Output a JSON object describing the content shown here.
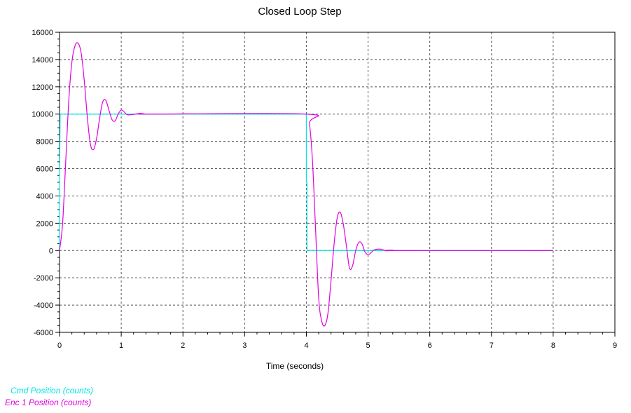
{
  "chart_data": {
    "type": "line",
    "title": "Closed Loop Step",
    "xlabel": "Time (seconds)",
    "ylabel": "",
    "xlim": [
      0,
      9
    ],
    "ylim": [
      -6000,
      16000
    ],
    "xticks": [
      "0",
      "1",
      "2",
      "3",
      "4",
      "5",
      "6",
      "7",
      "8",
      "9"
    ],
    "yticks": [
      "16000",
      "14000",
      "12000",
      "10000",
      "8000",
      "6000",
      "4000",
      "2000",
      "0",
      "-2000",
      "-4000",
      "-6000"
    ],
    "grid": true,
    "legend_position": "bottom-left",
    "series": [
      {
        "name": "Cmd Position (counts)",
        "color": "#00e5e5",
        "x": [
          0,
          0,
          0.01,
          4.0,
          4.0,
          4.01,
          4.01,
          8.0
        ],
        "y": [
          0,
          5000,
          10000,
          10000,
          5000,
          5000,
          0,
          0
        ]
      },
      {
        "name": "Enc 1 Position (counts)",
        "color": "#e000e0",
        "x": [
          0,
          0.05,
          0.1,
          0.15,
          0.2,
          0.25,
          0.3,
          0.35,
          0.4,
          0.45,
          0.5,
          0.55,
          0.6,
          0.65,
          0.7,
          0.75,
          0.8,
          0.85,
          0.9,
          0.95,
          1.0,
          1.05,
          1.1,
          1.2,
          1.3,
          1.4,
          1.5,
          4.0,
          4.05,
          4.1,
          4.15,
          4.2,
          4.25,
          4.3,
          4.35,
          4.4,
          4.45,
          4.5,
          4.55,
          4.6,
          4.65,
          4.7,
          4.75,
          4.8,
          4.85,
          4.9,
          4.95,
          5.0,
          5.05,
          5.1,
          5.2,
          5.3,
          5.4,
          5.5,
          8.0
        ],
        "y": [
          0,
          2000,
          6500,
          11000,
          13800,
          15000,
          15200,
          14500,
          12500,
          9800,
          7800,
          7400,
          8200,
          9700,
          10900,
          11000,
          10300,
          9600,
          9500,
          10000,
          10300,
          10150,
          9950,
          9980,
          10050,
          10000,
          10000,
          10000,
          9300,
          6500,
          1500,
          -3500,
          -5200,
          -5500,
          -4600,
          -2200,
          500,
          2400,
          2800,
          1900,
          300,
          -1300,
          -1100,
          0,
          600,
          500,
          -100,
          -300,
          -150,
          50,
          100,
          -20,
          30,
          0,
          0
        ]
      }
    ]
  }
}
